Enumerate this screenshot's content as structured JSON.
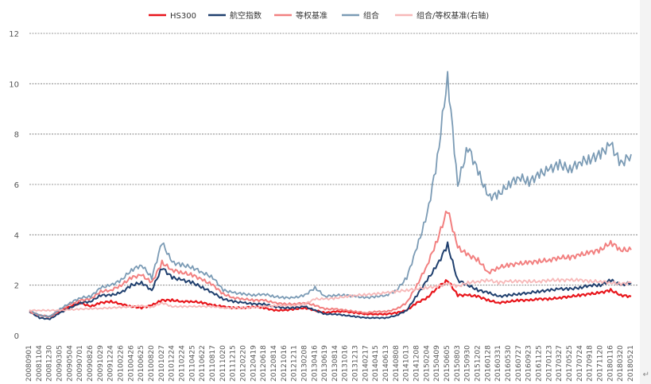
{
  "chart_data": {
    "type": "line",
    "title": "",
    "xlabel": "",
    "ylabel": "",
    "ylim": [
      0,
      12
    ],
    "yticks": [
      0,
      2,
      4,
      6,
      8,
      10,
      12
    ],
    "grid": "horizontal-dashed",
    "legend_position": "top",
    "x_tick_labels": [
      "20080901",
      "20081104",
      "20081230",
      "20090305",
      "20090504",
      "20090701",
      "20090826",
      "20091029",
      "20091224",
      "20100226",
      "20100426",
      "20100625",
      "20100820",
      "20101027",
      "20101224",
      "20110224",
      "20110425",
      "20110622",
      "20110817",
      "20111020",
      "20111215",
      "20120220",
      "20120419",
      "20120618",
      "20120814",
      "20121016",
      "20121211",
      "20130208",
      "20130416",
      "20130619",
      "20130814",
      "20131016",
      "20131213",
      "20140217",
      "20140415",
      "20140613",
      "20140808",
      "20141013",
      "20141208",
      "20150204",
      "20150409",
      "20150605",
      "20150803",
      "20150930",
      "20151202",
      "20160128",
      "20160331",
      "20160530",
      "20160727",
      "20160923",
      "20161125",
      "20170123",
      "20170327",
      "20170525",
      "20170724",
      "20170918",
      "20171120",
      "20180116",
      "20180320",
      "20180521"
    ],
    "series": [
      {
        "name": "HS300",
        "color": "#e8151b",
        "width": 2.2,
        "values": [
          0.95,
          0.8,
          0.75,
          0.95,
          1.15,
          1.3,
          1.15,
          1.3,
          1.35,
          1.25,
          1.15,
          1.1,
          1.2,
          1.4,
          1.4,
          1.35,
          1.35,
          1.3,
          1.2,
          1.15,
          1.1,
          1.1,
          1.15,
          1.1,
          1.0,
          1.0,
          1.05,
          1.1,
          1.0,
          0.9,
          0.95,
          0.95,
          0.9,
          0.85,
          0.85,
          0.85,
          0.9,
          1.0,
          1.3,
          1.5,
          1.9,
          2.2,
          1.6,
          1.6,
          1.55,
          1.4,
          1.3,
          1.35,
          1.4,
          1.4,
          1.45,
          1.45,
          1.5,
          1.55,
          1.6,
          1.65,
          1.7,
          1.8,
          1.6,
          1.55
        ]
      },
      {
        "name": "航空指数",
        "color": "#1f3f6e",
        "width": 2.0,
        "values": [
          0.95,
          0.7,
          0.65,
          0.9,
          1.1,
          1.3,
          1.35,
          1.6,
          1.6,
          1.7,
          2.0,
          2.1,
          1.8,
          2.7,
          2.3,
          2.2,
          2.1,
          1.9,
          1.7,
          1.45,
          1.35,
          1.3,
          1.25,
          1.25,
          1.15,
          1.1,
          1.1,
          1.15,
          1.0,
          0.85,
          0.85,
          0.8,
          0.75,
          0.7,
          0.7,
          0.7,
          0.8,
          1.0,
          1.6,
          2.2,
          2.8,
          3.6,
          2.2,
          2.0,
          1.8,
          1.7,
          1.55,
          1.6,
          1.65,
          1.7,
          1.75,
          1.8,
          1.85,
          1.85,
          1.9,
          2.0,
          2.0,
          2.2,
          2.0,
          2.1
        ]
      },
      {
        "name": "等权基准",
        "color": "#f28080",
        "width": 2.0,
        "values": [
          0.95,
          0.8,
          0.75,
          1.0,
          1.25,
          1.4,
          1.45,
          1.75,
          1.8,
          2.0,
          2.3,
          2.4,
          2.1,
          2.9,
          2.6,
          2.5,
          2.4,
          2.2,
          2.0,
          1.65,
          1.5,
          1.45,
          1.4,
          1.4,
          1.3,
          1.25,
          1.25,
          1.3,
          1.2,
          1.05,
          1.05,
          1.0,
          0.95,
          0.9,
          0.95,
          0.95,
          1.05,
          1.3,
          2.0,
          2.8,
          3.8,
          5.0,
          3.5,
          3.2,
          3.0,
          2.5,
          2.7,
          2.8,
          2.85,
          2.9,
          2.95,
          3.0,
          3.1,
          3.1,
          3.2,
          3.3,
          3.4,
          3.7,
          3.4,
          3.4
        ]
      },
      {
        "name": "组合",
        "color": "#7b9bb5",
        "width": 1.8,
        "values": [
          1.0,
          0.8,
          0.75,
          1.05,
          1.3,
          1.5,
          1.55,
          1.9,
          2.0,
          2.2,
          2.6,
          2.8,
          2.3,
          3.7,
          2.9,
          2.8,
          2.7,
          2.5,
          2.3,
          1.8,
          1.7,
          1.65,
          1.6,
          1.65,
          1.55,
          1.5,
          1.5,
          1.6,
          1.9,
          1.55,
          1.6,
          1.6,
          1.55,
          1.5,
          1.55,
          1.6,
          1.8,
          2.3,
          3.5,
          4.8,
          7.0,
          10.3,
          6.0,
          7.5,
          6.5,
          5.5,
          5.6,
          6.0,
          6.3,
          6.1,
          6.4,
          6.6,
          6.8,
          6.6,
          6.9,
          7.0,
          7.2,
          7.6,
          6.8,
          7.2
        ]
      },
      {
        "name": "组合/等权基准(右轴)",
        "color": "#f7b8b8",
        "width": 1.8,
        "values": [
          1.0,
          1.0,
          1.0,
          1.0,
          1.02,
          1.05,
          1.07,
          1.08,
          1.1,
          1.12,
          1.15,
          1.18,
          1.12,
          1.3,
          1.15,
          1.15,
          1.15,
          1.15,
          1.15,
          1.1,
          1.1,
          1.1,
          1.12,
          1.15,
          1.18,
          1.2,
          1.2,
          1.25,
          1.45,
          1.45,
          1.48,
          1.55,
          1.6,
          1.62,
          1.65,
          1.7,
          1.75,
          1.8,
          1.85,
          1.9,
          1.95,
          2.05,
          1.95,
          2.1,
          2.15,
          2.2,
          2.1,
          2.15,
          2.15,
          2.15,
          2.15,
          2.2,
          2.2,
          2.2,
          2.2,
          2.15,
          2.15,
          2.1,
          2.05,
          2.1
        ]
      }
    ]
  }
}
